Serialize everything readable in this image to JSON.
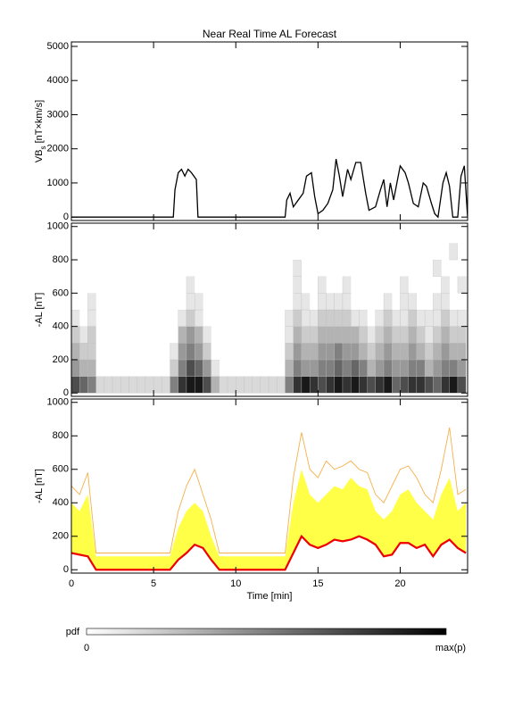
{
  "title": "Near Real Time AL Forecast",
  "colorbar": {
    "label": "pdf",
    "min_label": "0",
    "max_label": "max(p)"
  },
  "chart_data": [
    {
      "type": "line",
      "ylabel": [
        "VB",
        "s",
        " [nT×km/s]"
      ],
      "color": "#000000",
      "xlim": [
        0,
        24.1
      ],
      "xticks": [
        0,
        5,
        10,
        15,
        20
      ],
      "ylim": [
        -100,
        5130
      ],
      "yticks": [
        0,
        1000,
        2000,
        3000,
        4000,
        5000
      ],
      "x": [
        0,
        6.2,
        6.3,
        6.5,
        6.7,
        6.9,
        7.1,
        7.3,
        7.6,
        7.7,
        13,
        13.1,
        13.3,
        13.5,
        13.8,
        14.1,
        14.3,
        14.6,
        14.8,
        15,
        15.3,
        15.6,
        15.9,
        16.1,
        16.3,
        16.5,
        16.8,
        17,
        17.3,
        17.6,
        17.9,
        18.1,
        18.5,
        18.8,
        19,
        19.2,
        19.4,
        19.6,
        20,
        20.3,
        20.5,
        20.8,
        21.1,
        21.4,
        21.6,
        21.9,
        22.1,
        22.3,
        22.6,
        22.8,
        23,
        23.2,
        23.5,
        23.7,
        23.9,
        24.1
      ],
      "values": [
        0,
        0,
        800,
        1300,
        1400,
        1200,
        1400,
        1300,
        1100,
        0,
        0,
        500,
        700,
        300,
        500,
        700,
        1200,
        1300,
        600,
        100,
        200,
        400,
        800,
        1700,
        1200,
        600,
        1400,
        1100,
        1600,
        1600,
        700,
        200,
        300,
        800,
        1100,
        300,
        1000,
        500,
        1500,
        1300,
        1000,
        400,
        300,
        1000,
        900,
        400,
        100,
        0,
        1000,
        1300,
        900,
        0,
        0,
        1200,
        1500,
        0
      ]
    },
    {
      "type": "heatmap",
      "ylabel": "-AL [nT]",
      "xlim": [
        0,
        24.1
      ],
      "xticks": [
        0,
        5,
        10,
        15,
        20
      ],
      "ylim": [
        -20,
        1020
      ],
      "yticks": [
        0,
        200,
        400,
        600,
        800,
        1000
      ],
      "xbins": [
        0,
        0.5,
        1,
        1.5,
        2,
        2.5,
        3,
        3.5,
        4,
        4.5,
        5,
        5.5,
        6,
        6.5,
        7,
        7.5,
        8,
        8.5,
        9,
        9.5,
        10,
        10.5,
        11,
        11.5,
        12,
        12.5,
        13,
        13.5,
        14,
        14.5,
        15,
        15.5,
        16,
        16.5,
        17,
        17.5,
        18,
        18.5,
        19,
        19.5,
        20,
        20.5,
        21,
        21.5,
        22,
        22.5,
        23,
        23.5,
        24
      ],
      "ybins": [
        0,
        100,
        200,
        300,
        400,
        500,
        600,
        700,
        800,
        900,
        1000
      ],
      "z": [
        [
          0.7,
          0.6,
          0.5,
          0.15,
          0.15,
          0.15,
          0.15,
          0.15,
          0.15,
          0.15,
          0.15,
          0.15,
          0.5,
          0.8,
          0.9,
          0.9,
          0.7,
          0.3,
          0.15,
          0.15,
          0.15,
          0.15,
          0.15,
          0.15,
          0.15,
          0.15,
          0.5,
          0.8,
          0.9,
          0.8,
          0.7,
          0.8,
          0.9,
          0.8,
          0.9,
          0.8,
          0.7,
          0.8,
          0.9,
          0.6,
          0.7,
          0.8,
          0.8,
          0.7,
          0.6,
          0.8,
          0.9,
          0.7
        ],
        [
          0.4,
          0.3,
          0.3,
          0,
          0,
          0,
          0,
          0,
          0,
          0,
          0,
          0,
          0.2,
          0.5,
          0.7,
          0.6,
          0.4,
          0.1,
          0,
          0,
          0,
          0,
          0,
          0,
          0,
          0,
          0.3,
          0.5,
          0.4,
          0.4,
          0.5,
          0.5,
          0.6,
          0.5,
          0.6,
          0.5,
          0.3,
          0.4,
          0.5,
          0.4,
          0.4,
          0.5,
          0.5,
          0.3,
          0.4,
          0.5,
          0.5,
          0.4
        ],
        [
          0.3,
          0.2,
          0.2,
          0,
          0,
          0,
          0,
          0,
          0,
          0,
          0,
          0,
          0.1,
          0.4,
          0.5,
          0.4,
          0.2,
          0,
          0,
          0,
          0,
          0,
          0,
          0,
          0,
          0,
          0.2,
          0.4,
          0.3,
          0.3,
          0.4,
          0.4,
          0.5,
          0.4,
          0.4,
          0.3,
          0.2,
          0.3,
          0.4,
          0.3,
          0.3,
          0.4,
          0.3,
          0.2,
          0.3,
          0.4,
          0.3,
          0.3
        ],
        [
          0.2,
          0.1,
          0.2,
          0,
          0,
          0,
          0,
          0,
          0,
          0,
          0,
          0,
          0,
          0.3,
          0.4,
          0.3,
          0.1,
          0,
          0,
          0,
          0,
          0,
          0,
          0,
          0,
          0,
          0.1,
          0.3,
          0.2,
          0.2,
          0.3,
          0.3,
          0.3,
          0.3,
          0.3,
          0.2,
          0.1,
          0.2,
          0.3,
          0.2,
          0.2,
          0.3,
          0.2,
          0.1,
          0.2,
          0.3,
          0.2,
          0.2
        ],
        [
          0.1,
          0,
          0.1,
          0,
          0,
          0,
          0,
          0,
          0,
          0,
          0,
          0,
          0,
          0.1,
          0.2,
          0.1,
          0,
          0,
          0,
          0,
          0,
          0,
          0,
          0,
          0,
          0,
          0.1,
          0.2,
          0.1,
          0.1,
          0.2,
          0.2,
          0.2,
          0.2,
          0.1,
          0.1,
          0,
          0.1,
          0.2,
          0.1,
          0.1,
          0.2,
          0.1,
          0.1,
          0.1,
          0.2,
          0.1,
          0.1
        ],
        [
          0,
          0,
          0.1,
          0,
          0,
          0,
          0,
          0,
          0,
          0,
          0,
          0,
          0,
          0,
          0.1,
          0.1,
          0,
          0,
          0,
          0,
          0,
          0,
          0,
          0,
          0,
          0,
          0,
          0.1,
          0.1,
          0,
          0.1,
          0.1,
          0.1,
          0.1,
          0,
          0,
          0,
          0,
          0.1,
          0,
          0.1,
          0.1,
          0,
          0,
          0.1,
          0.1,
          0,
          0
        ],
        [
          0,
          0,
          0,
          0,
          0,
          0,
          0,
          0,
          0,
          0,
          0,
          0,
          0,
          0,
          0.1,
          0,
          0,
          0,
          0,
          0,
          0,
          0,
          0,
          0,
          0,
          0,
          0,
          0.1,
          0,
          0,
          0.1,
          0,
          0,
          0.1,
          0,
          0,
          0,
          0,
          0,
          0,
          0.1,
          0,
          0,
          0,
          0,
          0.1,
          0,
          0.1
        ],
        [
          0,
          0,
          0,
          0,
          0,
          0,
          0,
          0,
          0,
          0,
          0,
          0,
          0,
          0,
          0,
          0,
          0,
          0,
          0,
          0,
          0,
          0,
          0,
          0,
          0,
          0,
          0,
          0.1,
          0,
          0,
          0,
          0,
          0,
          0,
          0,
          0,
          0,
          0,
          0,
          0,
          0,
          0,
          0,
          0,
          0.1,
          0,
          0,
          0
        ],
        [
          0,
          0,
          0,
          0,
          0,
          0,
          0,
          0,
          0,
          0,
          0,
          0,
          0,
          0,
          0,
          0,
          0,
          0,
          0,
          0,
          0,
          0,
          0,
          0,
          0,
          0,
          0,
          0,
          0,
          0,
          0,
          0,
          0,
          0,
          0,
          0,
          0,
          0,
          0,
          0,
          0,
          0,
          0,
          0,
          0,
          0,
          0.1,
          0
        ],
        [
          0,
          0,
          0,
          0,
          0,
          0,
          0,
          0,
          0,
          0,
          0,
          0,
          0,
          0,
          0,
          0,
          0,
          0,
          0,
          0,
          0,
          0,
          0,
          0,
          0,
          0,
          0,
          0,
          0,
          0,
          0,
          0,
          0,
          0,
          0,
          0,
          0,
          0,
          0,
          0,
          0,
          0,
          0,
          0,
          0,
          0,
          0,
          0
        ]
      ]
    },
    {
      "type": "band",
      "ylabel": "-AL [nT]",
      "xlabel": "Time [min]",
      "xlim": [
        0,
        24.1
      ],
      "xticks": [
        0,
        5,
        10,
        15,
        20
      ],
      "ylim": [
        -20,
        1020
      ],
      "yticks": [
        0,
        200,
        400,
        600,
        800,
        1000
      ],
      "x": [
        0,
        0.5,
        1,
        1.5,
        2,
        2.5,
        3,
        3.5,
        4,
        4.5,
        5,
        5.5,
        6,
        6.5,
        7,
        7.5,
        8,
        8.5,
        9,
        9.5,
        10,
        10.5,
        11,
        11.5,
        12,
        12.5,
        13,
        13.5,
        14,
        14.5,
        15,
        15.5,
        16,
        16.5,
        17,
        17.5,
        18,
        18.5,
        19,
        19.5,
        20,
        20.5,
        21,
        21.5,
        22,
        22.5,
        23,
        23.5,
        24
      ],
      "series": [
        {
          "color": "#ffff33",
          "values": [
            400,
            350,
            450,
            80,
            80,
            80,
            80,
            80,
            80,
            80,
            80,
            80,
            80,
            250,
            350,
            400,
            350,
            200,
            80,
            80,
            80,
            80,
            80,
            80,
            80,
            80,
            80,
            400,
            600,
            450,
            400,
            450,
            500,
            480,
            550,
            500,
            480,
            350,
            300,
            350,
            450,
            480,
            400,
            350,
            300,
            450,
            550,
            350,
            400
          ]
        },
        {
          "color": "#f5b04a",
          "values": [
            500,
            450,
            580,
            100,
            100,
            100,
            100,
            100,
            100,
            100,
            100,
            100,
            100,
            350,
            500,
            600,
            450,
            300,
            100,
            100,
            100,
            100,
            100,
            100,
            100,
            100,
            100,
            550,
            820,
            600,
            550,
            650,
            600,
            620,
            650,
            600,
            580,
            450,
            400,
            500,
            600,
            620,
            550,
            450,
            400,
            600,
            850,
            450,
            480
          ]
        },
        {
          "color": "#ee0000",
          "values": [
            100,
            90,
            80,
            0,
            0,
            0,
            0,
            0,
            0,
            0,
            0,
            0,
            0,
            60,
            100,
            150,
            130,
            60,
            0,
            0,
            0,
            0,
            0,
            0,
            0,
            0,
            0,
            100,
            200,
            150,
            130,
            150,
            180,
            170,
            180,
            200,
            180,
            150,
            80,
            90,
            160,
            160,
            130,
            150,
            80,
            150,
            180,
            130,
            100
          ]
        }
      ]
    }
  ]
}
